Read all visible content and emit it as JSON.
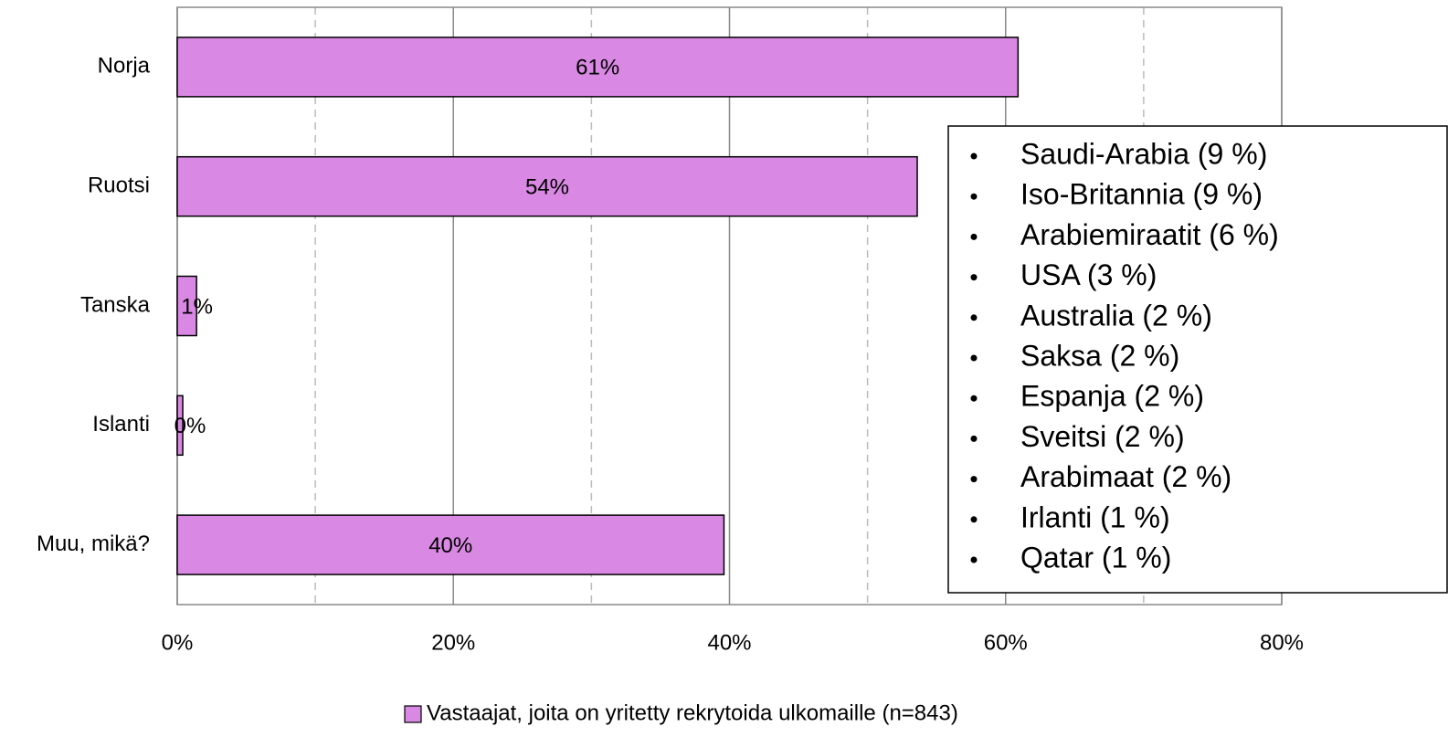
{
  "chart_data": {
    "type": "bar",
    "orientation": "horizontal",
    "categories": [
      "Norja",
      "Ruotsi",
      "Tanska",
      "Islanti",
      "Muu, mikä?"
    ],
    "series": [
      {
        "name": "Vastaajat, joita on yritetty rekrytoida ulkomaille (n=843)",
        "color": "#d988e3",
        "values": [
          60.9,
          53.6,
          1.4,
          0.4,
          39.6
        ],
        "value_labels": [
          "61%",
          "54%",
          "1%",
          "0%",
          "40%"
        ]
      }
    ],
    "xlim": [
      0,
      80
    ],
    "xticks": [
      {
        "value": 0,
        "label": "0%"
      },
      {
        "value": 20,
        "label": "20%"
      },
      {
        "value": 40,
        "label": "40%"
      },
      {
        "value": 60,
        "label": "60%"
      },
      {
        "value": 80,
        "label": "80%"
      }
    ],
    "minor_xticks": [
      10,
      30,
      50,
      70
    ],
    "grid": true,
    "legend": "bottom",
    "annotation": [
      "Saudi-Arabia (9 %)",
      "Iso-Britannia (9 %)",
      "Arabiemiraatit (6 %)",
      "USA (3 %)",
      "Australia (2 %)",
      "Saksa (2 %)",
      "Espanja (2 %)",
      "Sveitsi (2 %)",
      "Arabimaat (2 %)",
      "Irlanti (1 %)",
      "Qatar (1 %)"
    ]
  }
}
